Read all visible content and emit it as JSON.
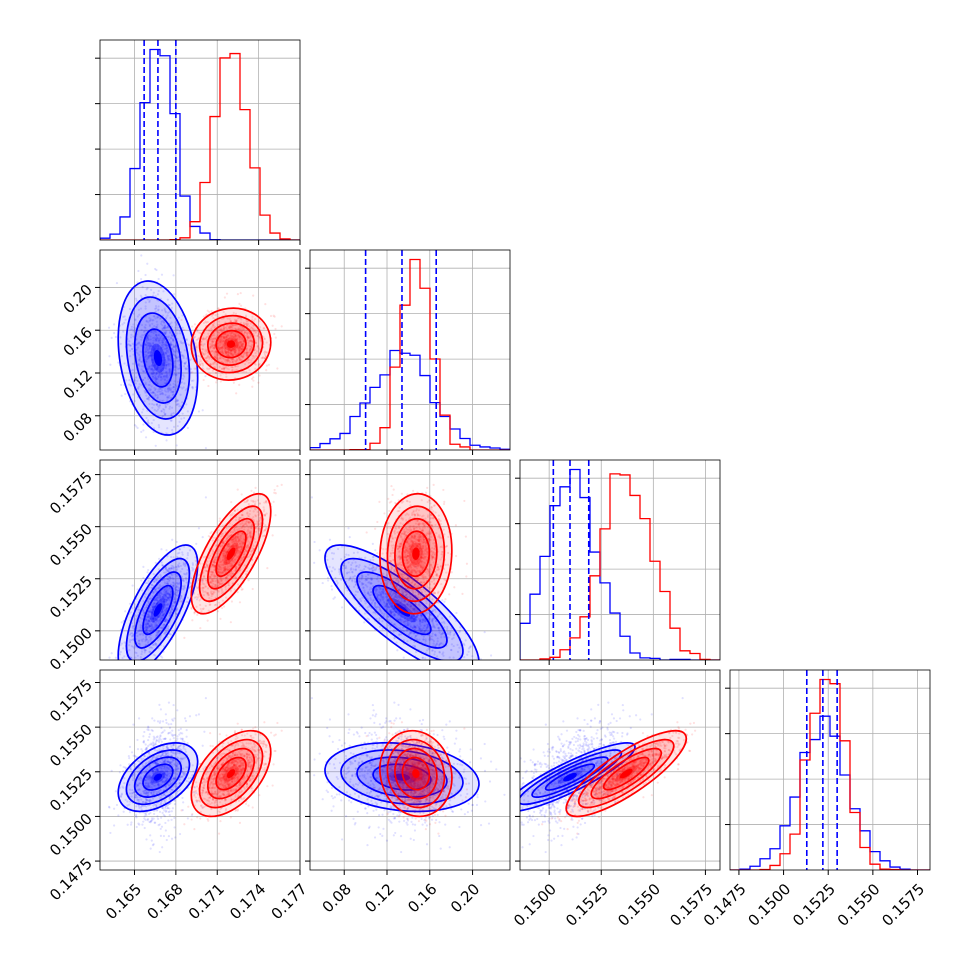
{
  "chart_data": {
    "type": "corner",
    "grid": true,
    "series": [
      {
        "color": "#0000ff",
        "mean": [
          0.1667,
          0.134,
          0.151,
          0.1522
        ],
        "sd": [
          0.0012,
          0.03,
          0.0013,
          0.0008
        ],
        "corr": [
          [
            0,
            1,
            -0.25
          ],
          [
            0,
            2,
            0.7
          ],
          [
            0,
            3,
            0.45
          ],
          [
            1,
            2,
            -0.8
          ],
          [
            1,
            3,
            -0.2
          ],
          [
            2,
            3,
            0.88
          ]
        ],
        "quantiles": [
          [
            0.1657,
            0.1667,
            0.168
          ],
          [
            0.1,
            0.134,
            0.166
          ],
          [
            0.1502,
            0.151,
            0.1519
          ],
          [
            0.1513,
            0.1522,
            0.153
          ]
        ],
        "show_quantiles": true
      },
      {
        "color": "#ff0000",
        "mean": [
          0.172,
          0.147,
          0.1537,
          0.1524
        ],
        "sd": [
          0.0012,
          0.014,
          0.0012,
          0.001
        ],
        "corr": [
          [
            0,
            1,
            0.05
          ],
          [
            0,
            2,
            0.7
          ],
          [
            0,
            3,
            0.5
          ],
          [
            1,
            2,
            0.05
          ],
          [
            1,
            3,
            -0.1
          ],
          [
            2,
            3,
            0.82
          ]
        ],
        "show_quantiles": false
      }
    ],
    "axes": [
      {
        "range": [
          0.1625,
          0.177
        ],
        "ticks": [
          0.165,
          0.168,
          0.171,
          0.174,
          0.177
        ],
        "tick_labels": [
          "0.165",
          "0.168",
          "0.171",
          "0.174",
          "0.177"
        ]
      },
      {
        "range": [
          0.048,
          0.235
        ],
        "ticks": [
          0.08,
          0.12,
          0.16,
          0.2
        ],
        "tick_labels": [
          "0.08",
          "0.12",
          "0.16",
          "0.20"
        ]
      },
      {
        "range": [
          0.1486,
          0.1582
        ],
        "ticks": [
          0.15,
          0.1525,
          0.155,
          0.1575
        ],
        "tick_labels": [
          "0.1500",
          "0.1525",
          "0.1550",
          "0.1575"
        ]
      },
      {
        "range": [
          0.147,
          0.1582
        ],
        "ticks": [
          0.1475,
          0.15,
          0.1525,
          0.155,
          0.1575
        ],
        "tick_labels": [
          "0.1475",
          "0.1500",
          "0.1525",
          "0.1550",
          "0.1575"
        ]
      }
    ],
    "xlabels": [
      "",
      "",
      "",
      ""
    ],
    "ylabels": [
      "",
      "",
      "",
      ""
    ],
    "title": ""
  }
}
